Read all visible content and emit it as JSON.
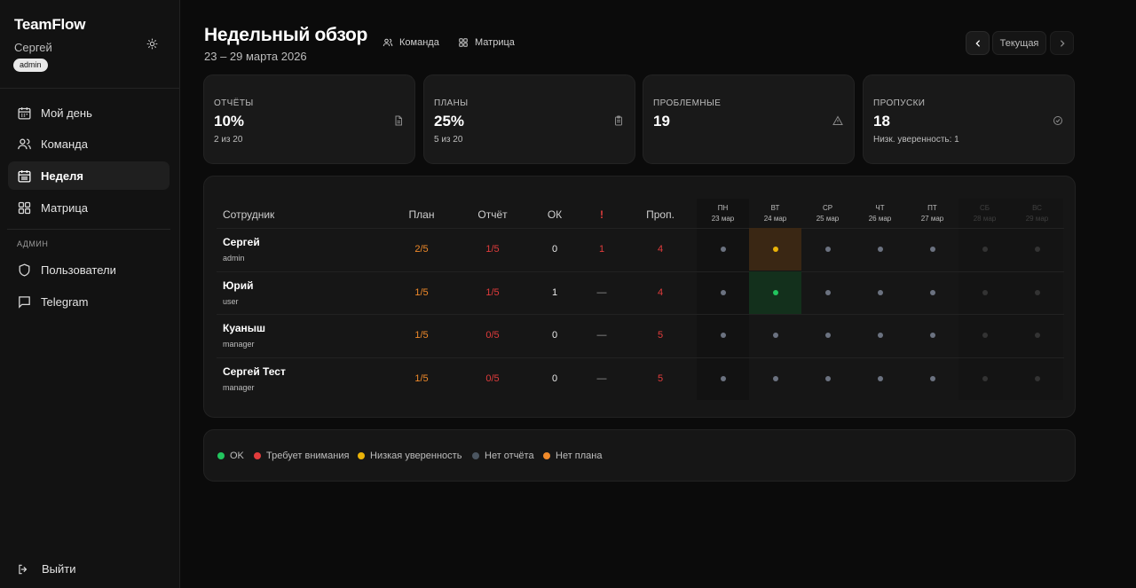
{
  "colors": {
    "ok": "#22c55e",
    "attention": "#e23c3c",
    "low_confidence": "#eab308",
    "no_report": "#4b5560",
    "no_plan": "#f08a2a",
    "dot_neutral": "#6b7280",
    "dot_muted": "#333333"
  },
  "sidebar": {
    "brand": "TeamFlow",
    "user_name": "Сергей",
    "user_role": "admin",
    "theme_icon": "sun-icon",
    "nav": [
      {
        "label": "Мой день",
        "icon": "calendar-icon",
        "active": false
      },
      {
        "label": "Команда",
        "icon": "users-icon",
        "active": false
      },
      {
        "label": "Неделя",
        "icon": "calendar-week-icon",
        "active": true
      },
      {
        "label": "Матрица",
        "icon": "grid-icon",
        "active": false
      }
    ],
    "admin_section_label": "АДМИН",
    "admin_nav": [
      {
        "label": "Пользователи",
        "icon": "shield-icon"
      },
      {
        "label": "Telegram",
        "icon": "chat-icon"
      }
    ],
    "logout_label": "Выйти"
  },
  "header": {
    "title": "Недельный обзор",
    "date_range": "23 – 29 марта 2026",
    "links": [
      {
        "label": "Команда",
        "icon": "users-icon"
      },
      {
        "label": "Матрица",
        "icon": "grid-icon"
      }
    ],
    "week_current_label": "Текущая"
  },
  "stats": [
    {
      "label": "ОТЧЁТЫ",
      "value": "10%",
      "sub": "2 из 20",
      "icon": "document-icon"
    },
    {
      "label": "ПЛАНЫ",
      "value": "25%",
      "sub": "5 из 20",
      "icon": "clipboard-icon"
    },
    {
      "label": "ПРОБЛЕМНЫЕ",
      "value": "19",
      "sub": "",
      "icon": "warning-icon"
    },
    {
      "label": "ПРОПУСКИ",
      "value": "18",
      "sub": "Низк. уверенность: 1",
      "icon": "check-circle-icon"
    }
  ],
  "table": {
    "columns": {
      "employee": "Сотрудник",
      "plan": "План",
      "report": "Отчёт",
      "ok": "ОК",
      "alert": "!",
      "missed": "Проп."
    },
    "days": [
      {
        "name": "ПН",
        "date": "23 мар",
        "weekend": false
      },
      {
        "name": "ВТ",
        "date": "24 мар",
        "weekend": false
      },
      {
        "name": "СР",
        "date": "25 мар",
        "weekend": false
      },
      {
        "name": "ЧТ",
        "date": "26 мар",
        "weekend": false
      },
      {
        "name": "ПТ",
        "date": "27 мар",
        "weekend": false
      },
      {
        "name": "СБ",
        "date": "28 мар",
        "weekend": true
      },
      {
        "name": "ВС",
        "date": "29 мар",
        "weekend": true
      }
    ],
    "rows": [
      {
        "name": "Сергей",
        "role": "admin",
        "plan": "2/5",
        "report": "1/5",
        "ok": "0",
        "alert": "1",
        "missed": "4",
        "statuses": [
          "none",
          "low_confidence",
          "none",
          "none",
          "none",
          "muted",
          "muted"
        ]
      },
      {
        "name": "Юрий",
        "role": "user",
        "plan": "1/5",
        "report": "1/5",
        "ok": "1",
        "alert": "—",
        "missed": "4",
        "statuses": [
          "none",
          "ok",
          "none",
          "none",
          "none",
          "muted",
          "muted"
        ]
      },
      {
        "name": "Куаныш",
        "role": "manager",
        "plan": "1/5",
        "report": "0/5",
        "ok": "0",
        "alert": "—",
        "missed": "5",
        "statuses": [
          "none",
          "none",
          "none",
          "none",
          "none",
          "muted",
          "muted"
        ]
      },
      {
        "name": "Сергей Тест",
        "role": "manager",
        "plan": "1/5",
        "report": "0/5",
        "ok": "0",
        "alert": "—",
        "missed": "5",
        "statuses": [
          "none",
          "none",
          "none",
          "none",
          "none",
          "muted",
          "muted"
        ]
      }
    ]
  },
  "legend": [
    {
      "label": "OK",
      "color_key": "ok"
    },
    {
      "label": "Требует внимания",
      "color_key": "attention"
    },
    {
      "label": "Низкая уверенность",
      "color_key": "low_confidence"
    },
    {
      "label": "Нет отчёта",
      "color_key": "no_report"
    },
    {
      "label": "Нет плана",
      "color_key": "no_plan"
    }
  ]
}
